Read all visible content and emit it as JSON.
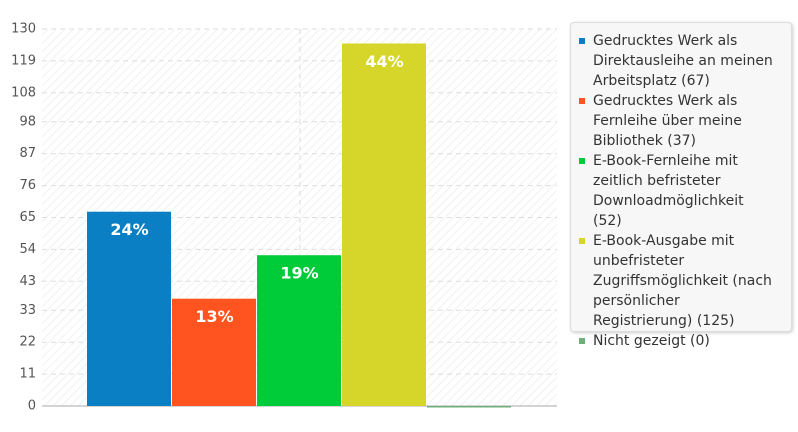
{
  "chart_data": {
    "type": "bar",
    "ylim": [
      0,
      130
    ],
    "yticks": [
      0,
      11,
      22,
      33,
      43,
      54,
      65,
      76,
      87,
      98,
      108,
      119,
      130
    ],
    "grid": true,
    "series": [
      {
        "name": "Gedrucktes Werk als Direktausleihe an meinen Arbeitsplatz (67)",
        "color": "#0a7fc4",
        "values": [
          67
        ],
        "share_label": "24%"
      },
      {
        "name": "Gedrucktes Werk als Fernleihe über meine Bibliothek (37)",
        "color": "#ff5420",
        "values": [
          37
        ],
        "share_label": "13%"
      },
      {
        "name": "E-Book-Fernleihe mit zeitlich befristeter Downloadmöglichkeit (52)",
        "color": "#00cc3a",
        "values": [
          52
        ],
        "share_label": "19%"
      },
      {
        "name": "E-Book-Ausgabe mit unbefristeter Zugriffsmöglichkeit (nach persönlicher Registrierung) (125)",
        "color": "#d6d62a",
        "values": [
          125
        ],
        "share_label": "44%"
      },
      {
        "name": "Nicht gezeigt (0)",
        "color": "#6fb07a",
        "values": [
          0
        ]
      }
    ]
  }
}
